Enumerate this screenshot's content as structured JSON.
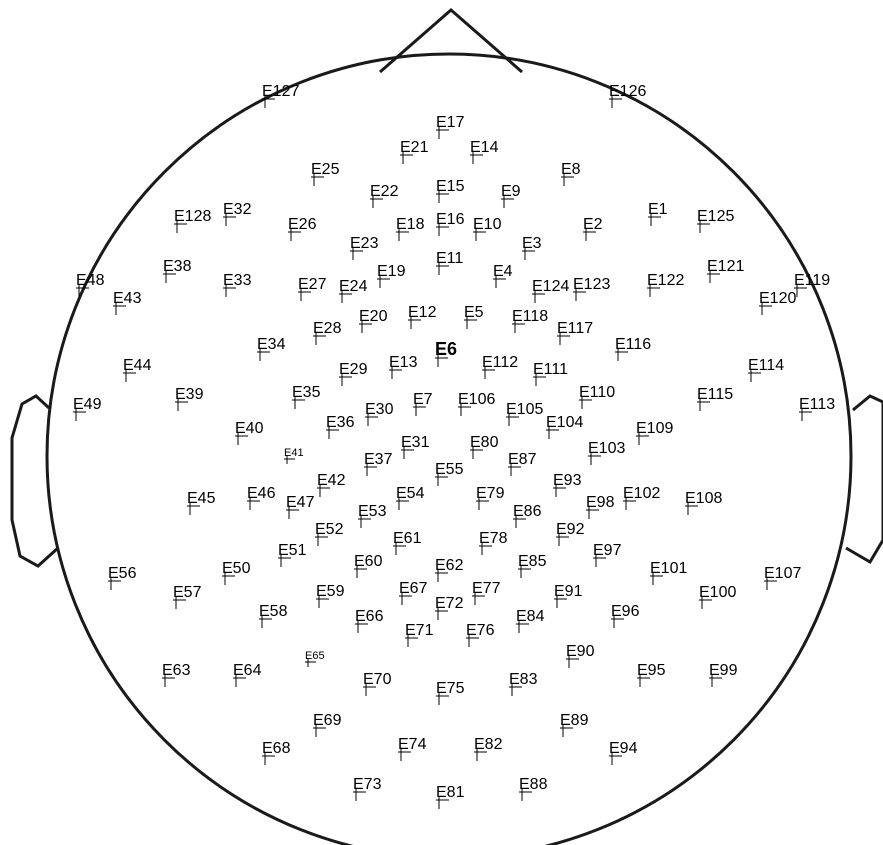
{
  "montage": {
    "highlight_color": "#e3262b",
    "highlighted": "E6",
    "electrodes": [
      {
        "id": "E17"
      },
      {
        "id": "E21"
      },
      {
        "id": "E14"
      },
      {
        "id": "E25"
      },
      {
        "id": "E8"
      },
      {
        "id": "E22"
      },
      {
        "id": "E15"
      },
      {
        "id": "E9"
      },
      {
        "id": "E127"
      },
      {
        "id": "E126"
      },
      {
        "id": "E128"
      },
      {
        "id": "E32"
      },
      {
        "id": "E26"
      },
      {
        "id": "E18"
      },
      {
        "id": "E16"
      },
      {
        "id": "E10"
      },
      {
        "id": "E2"
      },
      {
        "id": "E1"
      },
      {
        "id": "E125"
      },
      {
        "id": "E23"
      },
      {
        "id": "E3"
      },
      {
        "id": "E11"
      },
      {
        "id": "E38"
      },
      {
        "id": "E19"
      },
      {
        "id": "E4"
      },
      {
        "id": "E121"
      },
      {
        "id": "E48"
      },
      {
        "id": "E33"
      },
      {
        "id": "E27"
      },
      {
        "id": "E24"
      },
      {
        "id": "E124"
      },
      {
        "id": "E123"
      },
      {
        "id": "E122"
      },
      {
        "id": "E119"
      },
      {
        "id": "E43"
      },
      {
        "id": "E120"
      },
      {
        "id": "E20"
      },
      {
        "id": "E12"
      },
      {
        "id": "E5"
      },
      {
        "id": "E118"
      },
      {
        "id": "E28"
      },
      {
        "id": "E117"
      },
      {
        "id": "E34"
      },
      {
        "id": "E6"
      },
      {
        "id": "E116"
      },
      {
        "id": "E44"
      },
      {
        "id": "E13"
      },
      {
        "id": "E112"
      },
      {
        "id": "E29"
      },
      {
        "id": "E111"
      },
      {
        "id": "E114"
      },
      {
        "id": "E35"
      },
      {
        "id": "E110"
      },
      {
        "id": "E39"
      },
      {
        "id": "E115"
      },
      {
        "id": "E49"
      },
      {
        "id": "E7"
      },
      {
        "id": "E106"
      },
      {
        "id": "E113"
      },
      {
        "id": "E30"
      },
      {
        "id": "E105"
      },
      {
        "id": "E36"
      },
      {
        "id": "E104"
      },
      {
        "id": "E40"
      },
      {
        "id": "E109"
      },
      {
        "id": "E31"
      },
      {
        "id": "E80"
      },
      {
        "id": "E103"
      },
      {
        "id": "E41"
      },
      {
        "id": "E37"
      },
      {
        "id": "E87"
      },
      {
        "id": "E55"
      },
      {
        "id": "E42"
      },
      {
        "id": "E93"
      },
      {
        "id": "E45"
      },
      {
        "id": "E46"
      },
      {
        "id": "E54"
      },
      {
        "id": "E79"
      },
      {
        "id": "E102"
      },
      {
        "id": "E108"
      },
      {
        "id": "E47"
      },
      {
        "id": "E98"
      },
      {
        "id": "E53"
      },
      {
        "id": "E86"
      },
      {
        "id": "E52"
      },
      {
        "id": "E92"
      },
      {
        "id": "E61"
      },
      {
        "id": "E78"
      },
      {
        "id": "E51"
      },
      {
        "id": "E97"
      },
      {
        "id": "E60"
      },
      {
        "id": "E62"
      },
      {
        "id": "E85"
      },
      {
        "id": "E56"
      },
      {
        "id": "E50"
      },
      {
        "id": "E101"
      },
      {
        "id": "E107"
      },
      {
        "id": "E57"
      },
      {
        "id": "E59"
      },
      {
        "id": "E67"
      },
      {
        "id": "E77"
      },
      {
        "id": "E91"
      },
      {
        "id": "E100"
      },
      {
        "id": "E72"
      },
      {
        "id": "E58"
      },
      {
        "id": "E66"
      },
      {
        "id": "E84"
      },
      {
        "id": "E96"
      },
      {
        "id": "E71"
      },
      {
        "id": "E76"
      },
      {
        "id": "E90"
      },
      {
        "id": "E65"
      },
      {
        "id": "E63"
      },
      {
        "id": "E64"
      },
      {
        "id": "E95"
      },
      {
        "id": "E99"
      },
      {
        "id": "E70"
      },
      {
        "id": "E83"
      },
      {
        "id": "E75"
      },
      {
        "id": "E69"
      },
      {
        "id": "E89"
      },
      {
        "id": "E68"
      },
      {
        "id": "E74"
      },
      {
        "id": "E82"
      },
      {
        "id": "E94"
      },
      {
        "id": "E73"
      },
      {
        "id": "E88"
      },
      {
        "id": "E81"
      }
    ]
  }
}
